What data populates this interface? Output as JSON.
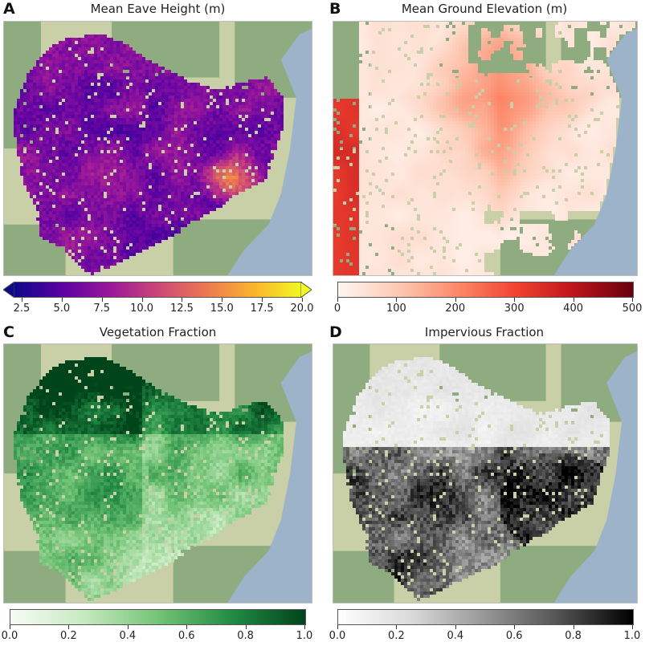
{
  "panels": [
    {
      "letter": "A",
      "title": "Mean Eave Height (m)",
      "ticks": [
        "2.5",
        "5.0",
        "7.5",
        "10.0",
        "12.5",
        "15.0",
        "17.5",
        "20.0"
      ],
      "colormap": "plasma"
    },
    {
      "letter": "B",
      "title": "Mean Ground Elevation (m)",
      "ticks": [
        "0",
        "100",
        "200",
        "300",
        "400",
        "500"
      ],
      "colormap": "reds"
    },
    {
      "letter": "C",
      "title": "Vegetation Fraction",
      "ticks": [
        "0.0",
        "0.2",
        "0.4",
        "0.6",
        "0.8",
        "1.0"
      ],
      "colormap": "greens"
    },
    {
      "letter": "D",
      "title": "Impervious Fraction",
      "ticks": [
        "0.0",
        "0.2",
        "0.4",
        "0.6",
        "0.8",
        "1.0"
      ],
      "colormap": "greys"
    }
  ],
  "colors": {
    "water": "#9db3c9",
    "land": "#c9cfa6",
    "forest": "#84a679",
    "plasma": [
      "#0d0887",
      "#5b02a3",
      "#9a179b",
      "#cb4678",
      "#eb7852",
      "#fbb32f",
      "#f0f921"
    ],
    "reds": [
      "#fff5f0",
      "#fdcab5",
      "#fc8a6a",
      "#f14432",
      "#bc141a",
      "#67000d"
    ],
    "greens": [
      "#f7fcf5",
      "#c7e9c0",
      "#74c476",
      "#238b45",
      "#00441b"
    ],
    "greys": [
      "#ffffff",
      "#d9d9d9",
      "#969696",
      "#525252",
      "#000000"
    ]
  }
}
